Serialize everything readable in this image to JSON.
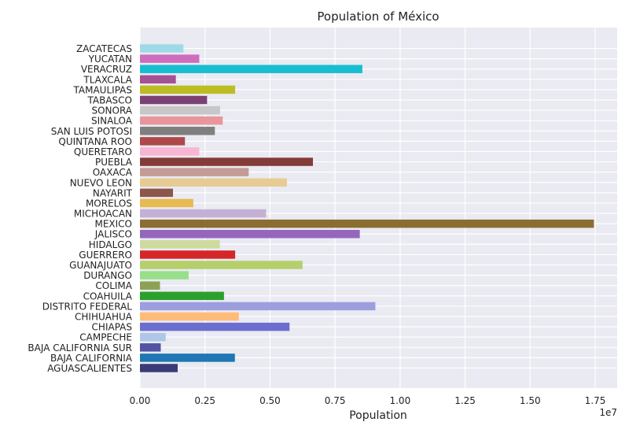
{
  "chart_data": {
    "type": "bar",
    "orientation": "horizontal",
    "title": "Population of México",
    "xlabel": "Population",
    "ylabel": "",
    "x_offset_label": "1e7",
    "xlim": [
      0,
      17500000
    ],
    "xticks": [
      0,
      2500000,
      5000000,
      7500000,
      10000000,
      12500000,
      15000000,
      17500000
    ],
    "xtick_labels": [
      "0.00",
      "0.25",
      "0.50",
      "0.75",
      "1.00",
      "1.25",
      "1.50",
      "1.75"
    ],
    "grid": true,
    "legend": "none",
    "categories": [
      "AGUASCALIENTES",
      "BAJA CALIFORNIA",
      "BAJA CALIFORNIA SUR",
      "CAMPECHE",
      "CHIAPAS",
      "CHIHUAHUA",
      "DISTRITO FEDERAL",
      "COAHUILA",
      "COLIMA",
      "DURANGO",
      "GUANAJUATO",
      "GUERRERO",
      "HIDALGO",
      "JALISCO",
      "MEXICO",
      "MICHOACAN",
      "MORELOS",
      "NAYARIT",
      "NUEVO LEON",
      "OAXACA",
      "PUEBLA",
      "QUERETARO",
      "QUINTANA ROO",
      "SAN LUIS POTOSI",
      "SINALOA",
      "SONORA",
      "TABASCO",
      "TAMAULIPAS",
      "TLAXCALA",
      "VERACRUZ",
      "YUCATAN",
      "ZACATECAS"
    ],
    "values": [
      1450000,
      3650000,
      800000,
      990000,
      5750000,
      3800000,
      9050000,
      3230000,
      770000,
      1870000,
      6250000,
      3660000,
      3070000,
      8450000,
      17450000,
      4850000,
      2050000,
      1270000,
      5650000,
      4180000,
      6650000,
      2280000,
      1730000,
      2880000,
      3180000,
      3080000,
      2580000,
      3660000,
      1380000,
      8550000,
      2280000,
      1670000
    ],
    "colors": [
      "#393b79",
      "#1f77b4",
      "#5254a3",
      "#aec7e8",
      "#6b6ecf",
      "#ffbb78",
      "#9c9ede",
      "#2ca02c",
      "#8ca252",
      "#98df8a",
      "#b5cf6b",
      "#d62728",
      "#cedb9c",
      "#9467bd",
      "#8c6d31",
      "#c5b0d5",
      "#e7ba52",
      "#8c564b",
      "#e7cb94",
      "#c49c94",
      "#843c39",
      "#f7b6d2",
      "#ad494a",
      "#7f7f7f",
      "#e7969c",
      "#c7c7c7",
      "#7b4173",
      "#bcbd22",
      "#a55194",
      "#17becf",
      "#ce6dbd",
      "#9edae5"
    ],
    "plot_background": "#eaeaf2"
  }
}
